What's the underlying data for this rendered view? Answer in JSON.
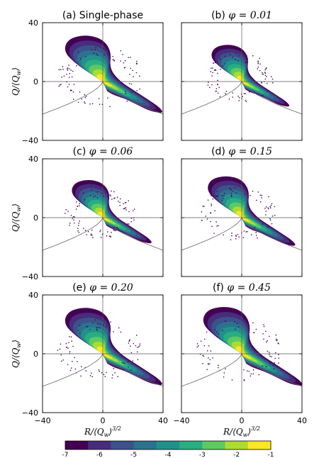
{
  "chart_data": {
    "type": "heatmap",
    "description_layout": "3x2 grid of joint PDF contour maps",
    "panels": [
      {
        "id": "a",
        "title_prefix": "(a) ",
        "title_text": "Single-phase",
        "title_math": "",
        "spread": 1.0
      },
      {
        "id": "b",
        "title_prefix": "(b) ",
        "title_text": "",
        "title_math": "φ = 0.01",
        "spread": 0.8
      },
      {
        "id": "c",
        "title_prefix": "(c) ",
        "title_text": "",
        "title_math": "φ = 0.06",
        "spread": 0.82
      },
      {
        "id": "d",
        "title_prefix": "(d) ",
        "title_text": "",
        "title_math": "φ = 0.15",
        "spread": 0.9
      },
      {
        "id": "e",
        "title_prefix": "(e) ",
        "title_text": "",
        "title_math": "φ = 0.20",
        "spread": 1.0
      },
      {
        "id": "f",
        "title_prefix": "(f) ",
        "title_text": "",
        "title_math": "φ = 0.45",
        "spread": 1.02
      }
    ],
    "xlim": [
      -40,
      40
    ],
    "ylim": [
      -40,
      40
    ],
    "xticks": [
      "−40",
      "0",
      "40"
    ],
    "yticks": [
      "40",
      "0",
      "−40"
    ],
    "xlabel": "R/⟨Q_w⟩^{3/2}",
    "ylabel": "Q/⟨Q_w⟩",
    "xlabel_main": "R/⟨Q",
    "xlabel_sub": "w",
    "xlabel_close": "⟩",
    "xlabel_sup": "3/2",
    "ylabel_main": "Q/⟨Q",
    "ylabel_sub": "w",
    "ylabel_close": "⟩",
    "colorbar": {
      "levels": [
        -7,
        -6,
        -5,
        -4,
        -3,
        -2,
        -1
      ],
      "tick_labels": [
        "-7",
        "-6",
        "-5",
        "-4",
        "-3",
        "-2",
        "-1"
      ],
      "colors": [
        "#440154",
        "#472d7b",
        "#3b528b",
        "#2c728e",
        "#21918c",
        "#28ae80",
        "#5ec962",
        "#addc30",
        "#fde725"
      ]
    },
    "grid": false,
    "reference_lines": [
      "R=0",
      "Q=0",
      "Vieillefosse tail"
    ]
  }
}
